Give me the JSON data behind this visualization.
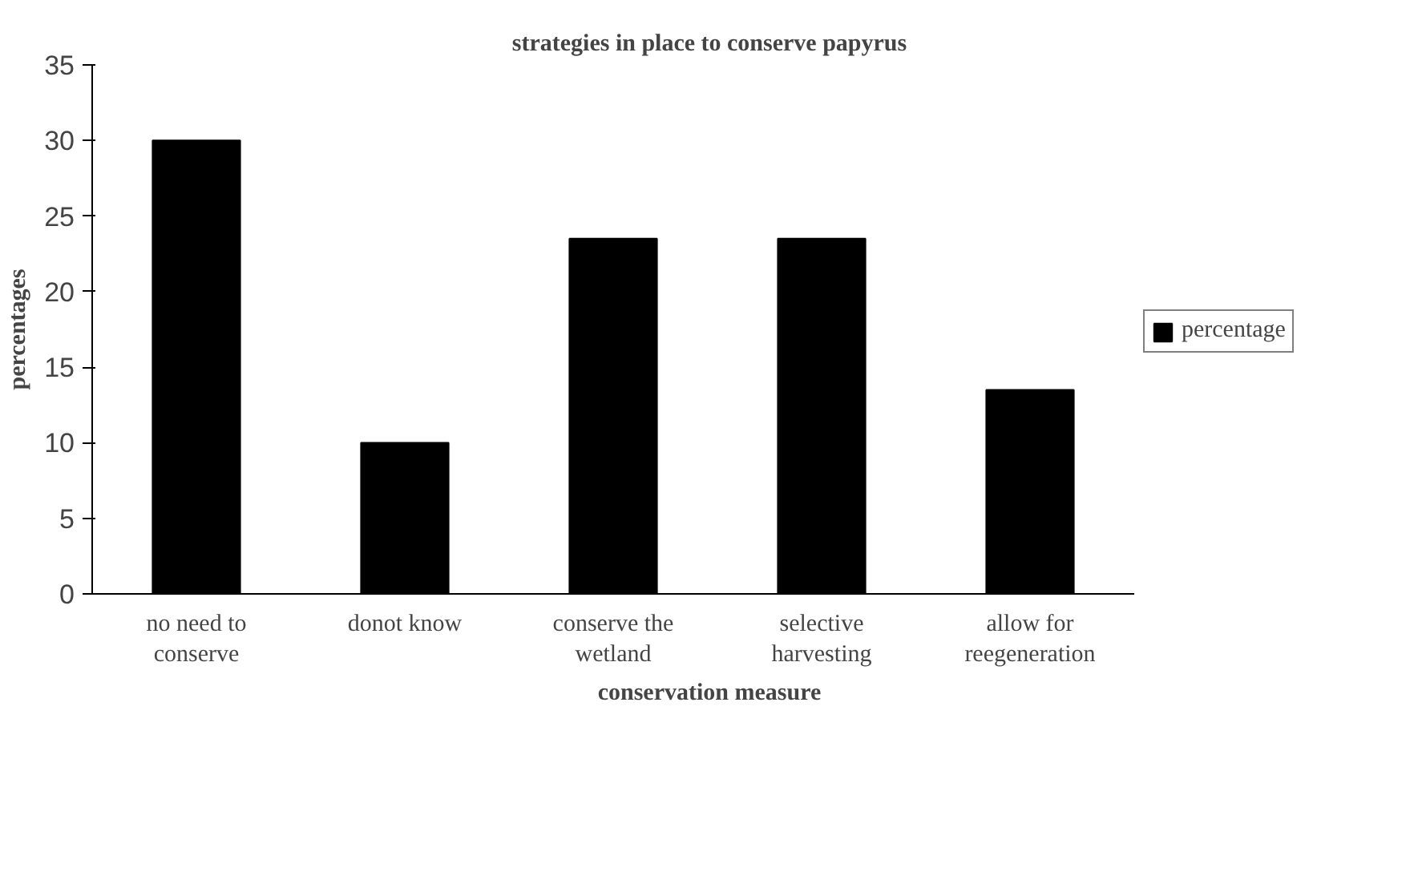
{
  "chart_data": {
    "type": "bar",
    "title": "strategies in place to conserve papyrus",
    "xlabel": "conservation measure",
    "ylabel": "percentages",
    "categories": [
      "no need to\nconserve",
      "donot know",
      "conserve the\nwetland",
      "selective\nharvesting",
      "allow for\nreegeneration"
    ],
    "series": [
      {
        "name": "percentage",
        "color": "#000000",
        "values": [
          30,
          10,
          23.5,
          23.5,
          13.5
        ]
      }
    ],
    "ylim": [
      0,
      35
    ],
    "yticks": [
      0,
      5,
      10,
      15,
      20,
      25,
      30,
      35
    ],
    "grid": false,
    "legend": "right"
  }
}
